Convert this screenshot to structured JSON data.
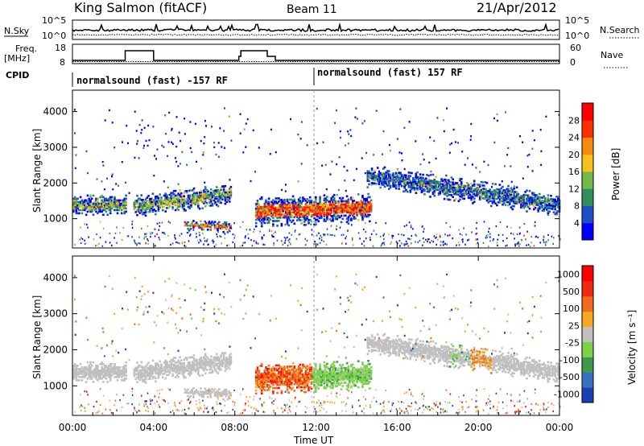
{
  "header": {
    "title": "King Salmon (fitACF)",
    "beam": "Beam 11",
    "date": "21/Apr/2012"
  },
  "strip_labels": {
    "nsky": "N.Sky",
    "nsky_ticks": [
      "10^5",
      "10^0"
    ],
    "nsearch": "N.Search",
    "nsearch_ticks": [
      "10^5",
      "10^0"
    ],
    "freq": "Freq.",
    "freq_unit": "[MHz]",
    "freq_ticks": [
      "18",
      "8"
    ],
    "nave": "Nave",
    "nave_ticks": [
      "60",
      "0"
    ],
    "cpid": "CPID"
  },
  "cpid_segments": [
    {
      "label": "normalsound (fast) -157 RF"
    },
    {
      "label": "normalsound (fast) 157 RF"
    }
  ],
  "chart_data": [
    {
      "type": "heatmap",
      "name": "power-panel",
      "ylabel": "Slant Range [km]",
      "yticks": [
        "1000",
        "2000",
        "3000",
        "4000"
      ],
      "ylim": [
        180,
        4600
      ],
      "xlim_hours": [
        0,
        24
      ],
      "colorbar": {
        "label": "Power [dB]",
        "ticks": [
          "4",
          "8",
          "12",
          "16",
          "20",
          "24",
          "28"
        ],
        "colors": [
          "#0000ff",
          "#1f4fc8",
          "#2e8f5a",
          "#74b84a",
          "#f4c21a",
          "#f58a10",
          "#ff3000",
          "#ff0000"
        ]
      }
    },
    {
      "type": "heatmap",
      "name": "velocity-panel",
      "ylabel": "Slant Range [km]",
      "yticks": [
        "1000",
        "2000",
        "3000",
        "4000"
      ],
      "ylim": [
        180,
        4600
      ],
      "xlim_hours": [
        0,
        24
      ],
      "colorbar": {
        "label": "Velocity [m s⁻¹]",
        "ticks": [
          "1000",
          "500",
          "100",
          "25",
          "-25",
          "-100",
          "-500",
          "-1000"
        ],
        "colors": [
          "#1a3fb5",
          "#3a70c4",
          "#3d9a4a",
          "#7dd24a",
          "#c0c0c0",
          "#f5a623",
          "#f26b1d",
          "#ee2a12",
          "#ff0000"
        ]
      }
    }
  ],
  "x_axis": {
    "label": "Time UT",
    "ticks": [
      "00:00",
      "04:00",
      "08:00",
      "12:00",
      "16:00",
      "20:00",
      "00:00"
    ]
  },
  "colors": {
    "ground_scatter": "#c0c0c0",
    "axis": "#000000"
  }
}
